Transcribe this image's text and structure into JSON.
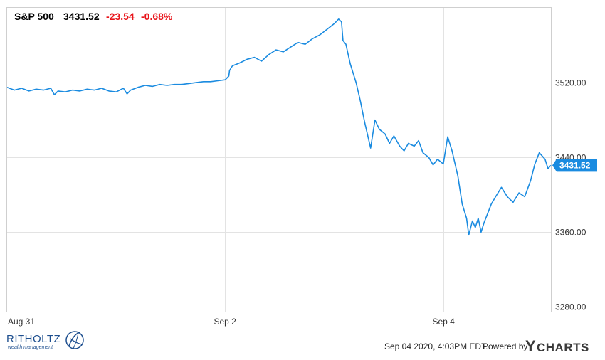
{
  "header": {
    "symbol": "S&P 500",
    "last": "3431.52",
    "change": "-23.54",
    "change_pct": "-0.68%"
  },
  "colors": {
    "line": "#1a8be0",
    "negative": "#e8151b",
    "grid": "#e3e3e3",
    "axis_text": "#333333",
    "badge_bg": "#1a8be0",
    "badge_text": "#ffffff",
    "logo_blue": "#1e4f8f",
    "ycharts_text": "#3a3a3a"
  },
  "footer": {
    "timestamp": "Sep 04 2020, 4:03PM EDT.",
    "powered_by": "Powered by",
    "brand_y": "Y",
    "brand_rest": "CHARTS",
    "logo_name": "RITHOLTZ",
    "logo_sub": "wealth management"
  },
  "chart_data": {
    "type": "line",
    "series": [
      {
        "values": [
          [
            0.0,
            3515
          ],
          [
            0.5,
            3512
          ],
          [
            1.0,
            3514
          ],
          [
            1.5,
            3511
          ],
          [
            2.0,
            3513
          ],
          [
            2.5,
            3512
          ],
          [
            3.0,
            3514
          ],
          [
            3.25,
            3507
          ],
          [
            3.5,
            3511
          ],
          [
            4.0,
            3510
          ],
          [
            4.5,
            3512
          ],
          [
            5.0,
            3511
          ],
          [
            5.5,
            3513
          ],
          [
            6.0,
            3512
          ],
          [
            6.5,
            3514
          ],
          [
            7.0,
            3511
          ],
          [
            7.5,
            3510
          ],
          [
            8.0,
            3514
          ],
          [
            8.25,
            3508
          ],
          [
            8.5,
            3512
          ],
          [
            9.0,
            3515
          ],
          [
            9.5,
            3517
          ],
          [
            10.0,
            3516
          ],
          [
            10.5,
            3518
          ],
          [
            11.0,
            3517
          ],
          [
            11.5,
            3518
          ],
          [
            12.0,
            3518
          ],
          [
            12.5,
            3519
          ],
          [
            13.0,
            3520
          ],
          [
            13.5,
            3521
          ],
          [
            14.0,
            3521
          ],
          [
            14.5,
            3522
          ],
          [
            15.0,
            3523
          ],
          [
            15.25,
            3527
          ],
          [
            15.3,
            3533
          ],
          [
            15.5,
            3538
          ],
          [
            16.0,
            3541
          ],
          [
            16.5,
            3545
          ],
          [
            17.0,
            3547
          ],
          [
            17.5,
            3543
          ],
          [
            18.0,
            3550
          ],
          [
            18.5,
            3555
          ],
          [
            19.0,
            3553
          ],
          [
            19.5,
            3558
          ],
          [
            20.0,
            3563
          ],
          [
            20.5,
            3561
          ],
          [
            21.0,
            3567
          ],
          [
            21.5,
            3571
          ],
          [
            22.0,
            3577
          ],
          [
            22.5,
            3583
          ],
          [
            22.8,
            3588
          ],
          [
            23.0,
            3585
          ],
          [
            23.1,
            3565
          ],
          [
            23.3,
            3561
          ],
          [
            23.6,
            3540
          ],
          [
            24.0,
            3520
          ],
          [
            24.3,
            3500
          ],
          [
            24.6,
            3477
          ],
          [
            25.0,
            3450
          ],
          [
            25.3,
            3480
          ],
          [
            25.6,
            3470
          ],
          [
            26.0,
            3465
          ],
          [
            26.3,
            3455
          ],
          [
            26.6,
            3463
          ],
          [
            27.0,
            3452
          ],
          [
            27.3,
            3447
          ],
          [
            27.6,
            3455
          ],
          [
            28.0,
            3452
          ],
          [
            28.3,
            3458
          ],
          [
            28.6,
            3445
          ],
          [
            29.0,
            3440
          ],
          [
            29.3,
            3432
          ],
          [
            29.6,
            3438
          ],
          [
            30.0,
            3433
          ],
          [
            30.3,
            3462
          ],
          [
            30.6,
            3447
          ],
          [
            31.0,
            3420
          ],
          [
            31.3,
            3390
          ],
          [
            31.6,
            3375
          ],
          [
            31.75,
            3357
          ],
          [
            32.0,
            3372
          ],
          [
            32.2,
            3365
          ],
          [
            32.4,
            3375
          ],
          [
            32.6,
            3360
          ],
          [
            32.8,
            3370
          ],
          [
            33.0,
            3378
          ],
          [
            33.3,
            3390
          ],
          [
            33.6,
            3398
          ],
          [
            34.0,
            3408
          ],
          [
            34.4,
            3398
          ],
          [
            34.8,
            3392
          ],
          [
            35.2,
            3402
          ],
          [
            35.6,
            3398
          ],
          [
            36.0,
            3415
          ],
          [
            36.3,
            3433
          ],
          [
            36.6,
            3445
          ],
          [
            37.0,
            3438
          ],
          [
            37.2,
            3428
          ],
          [
            37.4,
            3431.52
          ]
        ]
      }
    ],
    "x_ticks": [
      {
        "x": 0,
        "label": "Aug 31"
      },
      {
        "x": 15,
        "label": "Sep 2"
      },
      {
        "x": 30,
        "label": "Sep 4"
      }
    ],
    "xlim": [
      0,
      37.4
    ],
    "y_ticks": [
      3280,
      3360,
      3440,
      3520
    ],
    "y_tick_labels": [
      "3280.00",
      "3360.00",
      "3440.00",
      "3520.00"
    ],
    "ylim": [
      3275,
      3600
    ],
    "last_value_label": "3431.52",
    "grid": true
  }
}
